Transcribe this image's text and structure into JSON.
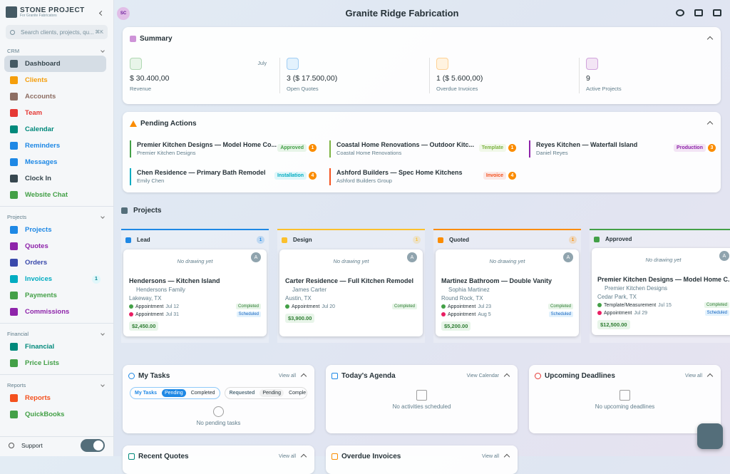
{
  "sidebar": {
    "brand": "STONE PROJECT",
    "brand_sub": "For Granite Fabricators",
    "search_placeholder": "Search clients, projects, qu...",
    "shortcut": "⌘K",
    "sections": [
      {
        "title": "CRM",
        "items": [
          {
            "label": "Dashboard",
            "color": "#455a64",
            "active": true
          },
          {
            "label": "Clients",
            "color": "#f59e0b"
          },
          {
            "label": "Accounts",
            "color": "#8d6e63"
          },
          {
            "label": "Team",
            "color": "#e53935"
          },
          {
            "label": "Calendar",
            "color": "#00897b"
          },
          {
            "label": "Reminders",
            "color": "#1e88e5"
          },
          {
            "label": "Messages",
            "color": "#1e88e5"
          },
          {
            "label": "Clock In",
            "color": "#37474f"
          },
          {
            "label": "Website Chat",
            "color": "#43a047"
          }
        ]
      },
      {
        "title": "Projects",
        "items": [
          {
            "label": "Projects",
            "color": "#1e88e5"
          },
          {
            "label": "Quotes",
            "color": "#8e24aa"
          },
          {
            "label": "Orders",
            "color": "#3949ab"
          },
          {
            "label": "Invoices",
            "color": "#00acc1",
            "badge": "1"
          },
          {
            "label": "Payments",
            "color": "#43a047"
          },
          {
            "label": "Commissions",
            "color": "#8e24aa"
          }
        ]
      },
      {
        "title": "Financial",
        "items": [
          {
            "label": "Financial",
            "color": "#00897b"
          },
          {
            "label": "Price Lists",
            "color": "#43a047"
          }
        ]
      },
      {
        "title": "Reports",
        "items": [
          {
            "label": "Reports",
            "color": "#f4511e"
          },
          {
            "label": "QuickBooks",
            "color": "#43a047"
          }
        ]
      }
    ],
    "support": "Support"
  },
  "header": {
    "avatar": "SC",
    "title": "Granite Ridge Fabrication"
  },
  "summary": {
    "title": "Summary",
    "period": "July",
    "stats": [
      {
        "value": "$ 30.400,00",
        "label": "Revenue",
        "color": "#43a047",
        "bg": "#e8f5e9"
      },
      {
        "value": "3 ($ 17.500,00)",
        "label": "Open Quotes",
        "color": "#1e88e5",
        "bg": "#e3f2fd"
      },
      {
        "value": "1 ($ 5.600,00)",
        "label": "Overdue Invoices",
        "color": "#fb8c00",
        "bg": "#fff3e0"
      },
      {
        "value": "9",
        "label": "Active Projects",
        "color": "#8e24aa",
        "bg": "#f3e5f5"
      }
    ]
  },
  "pending": {
    "title": "Pending Actions",
    "items": [
      {
        "title": "Premier Kitchen Designs — Model Home Co...",
        "sub": "Premier Kitchen Designs",
        "tag": "Approved",
        "count": "1",
        "color": "#43a047",
        "tag_bg": "#e8f5e9"
      },
      {
        "title": "Coastal Home Renovations — Outdoor Kitc...",
        "sub": "Coastal Home Renovations",
        "tag": "Template",
        "count": "1",
        "color": "#7cb342",
        "tag_bg": "#f1f8e9"
      },
      {
        "title": "Reyes Kitchen — Waterfall Island",
        "sub": "Daniel Reyes",
        "tag": "Production",
        "count": "3",
        "color": "#8e24aa",
        "tag_bg": "#f3e5f5"
      },
      {
        "title": "Chen Residence — Primary Bath Remodel",
        "sub": "Emily Chen",
        "tag": "Installation",
        "count": "4",
        "color": "#00acc1",
        "tag_bg": "#e0f7fa"
      },
      {
        "title": "Ashford Builders — Spec Home Kitchens",
        "sub": "Ashford Builders Group",
        "tag": "Invoice",
        "count": "4",
        "color": "#f4511e",
        "tag_bg": "#fbe9e7"
      }
    ]
  },
  "projects": {
    "title": "Projects",
    "columns": [
      {
        "name": "Lead",
        "count": "1",
        "color": "#1e88e5",
        "cards": [
          {
            "drawing": "No drawing yet",
            "avatar": "A",
            "title": "Hendersons — Kitchen Island",
            "client": "Hendersons Family",
            "location": "Lakeway, TX",
            "events": [
              {
                "label": "Appointment",
                "date": "Jul 12",
                "status": "Completed"
              },
              {
                "label": "Appointment",
                "date": "Jul 31",
                "status": "Scheduled"
              }
            ],
            "amount": "$2,450.00"
          }
        ]
      },
      {
        "name": "Design",
        "count": "1",
        "color": "#fbc02d",
        "cards": [
          {
            "drawing": "No drawing yet",
            "avatar": "A",
            "title": "Carter Residence — Full Kitchen Remodel",
            "client": "James Carter",
            "location": "Austin, TX",
            "events": [
              {
                "label": "Appointment",
                "date": "Jul 20",
                "status": "Completed"
              }
            ],
            "amount": "$3,900.00"
          }
        ]
      },
      {
        "name": "Quoted",
        "count": "1",
        "color": "#fb8c00",
        "cards": [
          {
            "drawing": "No drawing yet",
            "avatar": "A",
            "title": "Martinez Bathroom — Double Vanity",
            "client": "Sophia Martinez",
            "location": "Round Rock, TX",
            "events": [
              {
                "label": "Appointment",
                "date": "Jul 23",
                "status": "Completed"
              },
              {
                "label": "Appointment",
                "date": "Aug 5",
                "status": "Scheduled"
              }
            ],
            "amount": "$5,200.00"
          }
        ]
      },
      {
        "name": "Approved",
        "color": "#43a047",
        "cards": [
          {
            "drawing": "No drawing yet",
            "avatar": "A",
            "title": "Premier Kitchen Designs — Model Home C...",
            "client": "Premier Kitchen Designs",
            "location": "Cedar Park, TX",
            "events": [
              {
                "label": "Template/Measurement",
                "date": "Jul 15",
                "status": "Completed"
              },
              {
                "label": "Appointment",
                "date": "Jul 29",
                "status": "Scheduled"
              }
            ],
            "amount": "$12,500.00"
          }
        ]
      }
    ]
  },
  "widgets": [
    {
      "title": "My Tasks",
      "action": "View all",
      "tabs": [
        "My Tasks",
        "Pending",
        "Completed"
      ],
      "tabs2": [
        "Requested",
        "Pending",
        "Comple"
      ],
      "empty": "No pending tasks",
      "color": "#1e88e5"
    },
    {
      "title": "Today's Agenda",
      "action": "View Calendar",
      "empty": "No activities scheduled",
      "color": "#1e88e5"
    },
    {
      "title": "Upcoming Deadlines",
      "action": "View all",
      "empty": "No upcoming deadlines",
      "color": "#e53935"
    },
    {
      "title": "Recent Quotes",
      "action": "View all",
      "color": "#00897b"
    },
    {
      "title": "Overdue Invoices",
      "action": "View all",
      "color": "#fb8c00"
    }
  ]
}
